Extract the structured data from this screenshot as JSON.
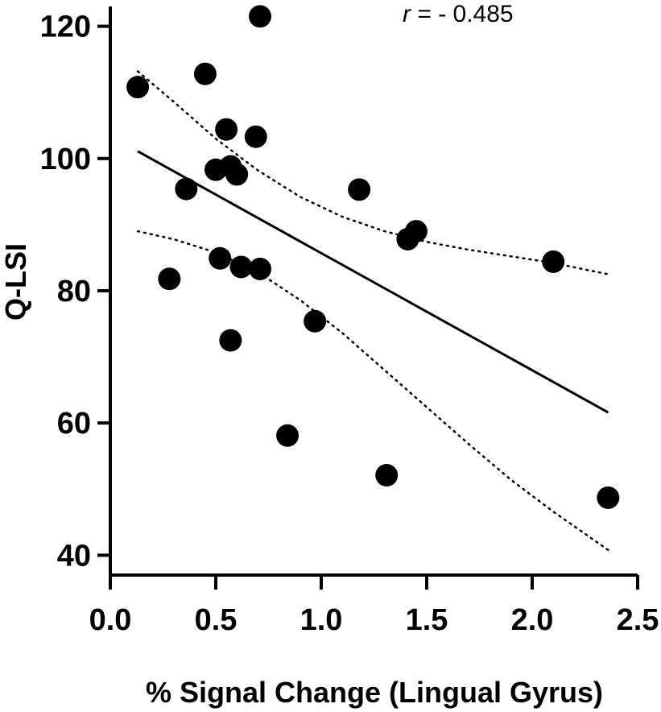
{
  "chart_data": {
    "type": "scatter",
    "title": "",
    "xlabel": "% Signal Change (Lingual Gyrus)",
    "ylabel": "Q-LSI",
    "xlim": [
      0,
      2.5
    ],
    "ylim": [
      37,
      123
    ],
    "x_ticks": [
      "0.0",
      "0.5",
      "1.0",
      "1.5",
      "2.0",
      "2.5"
    ],
    "y_ticks": [
      "40",
      "60",
      "80",
      "100",
      "120"
    ],
    "annotation": {
      "r_symbol": "r",
      "r_value": "= - 0.485"
    },
    "points": [
      {
        "x": 0.13,
        "y": 110.8
      },
      {
        "x": 0.45,
        "y": 112.8
      },
      {
        "x": 0.71,
        "y": 121.5
      },
      {
        "x": 0.55,
        "y": 104.4
      },
      {
        "x": 0.69,
        "y": 103.3
      },
      {
        "x": 0.5,
        "y": 98.3
      },
      {
        "x": 0.57,
        "y": 98.8
      },
      {
        "x": 0.6,
        "y": 97.6
      },
      {
        "x": 0.36,
        "y": 95.4
      },
      {
        "x": 1.18,
        "y": 95.3
      },
      {
        "x": 1.45,
        "y": 89.0
      },
      {
        "x": 1.41,
        "y": 87.8
      },
      {
        "x": 2.1,
        "y": 84.4
      },
      {
        "x": 0.52,
        "y": 84.9
      },
      {
        "x": 0.62,
        "y": 83.6
      },
      {
        "x": 0.71,
        "y": 83.3
      },
      {
        "x": 0.28,
        "y": 81.8
      },
      {
        "x": 0.97,
        "y": 75.4
      },
      {
        "x": 0.57,
        "y": 72.5
      },
      {
        "x": 0.84,
        "y": 58.1
      },
      {
        "x": 1.31,
        "y": 52.1
      },
      {
        "x": 2.36,
        "y": 48.7
      }
    ],
    "regression": [
      {
        "x": 0.13,
        "y": 101.1
      },
      {
        "x": 2.36,
        "y": 61.6
      }
    ],
    "ci_upper": [
      {
        "x": 0.13,
        "y": 113.2
      },
      {
        "x": 0.3,
        "y": 108.6
      },
      {
        "x": 0.5,
        "y": 103.0
      },
      {
        "x": 0.7,
        "y": 98.2
      },
      {
        "x": 0.9,
        "y": 94.2
      },
      {
        "x": 1.1,
        "y": 91.2
      },
      {
        "x": 1.3,
        "y": 89.0
      },
      {
        "x": 1.5,
        "y": 87.4
      },
      {
        "x": 1.7,
        "y": 86.2
      },
      {
        "x": 1.9,
        "y": 85.2
      },
      {
        "x": 2.1,
        "y": 84.2
      },
      {
        "x": 2.36,
        "y": 82.5
      }
    ],
    "ci_lower": [
      {
        "x": 0.13,
        "y": 89.0
      },
      {
        "x": 0.3,
        "y": 87.8
      },
      {
        "x": 0.5,
        "y": 85.8
      },
      {
        "x": 0.7,
        "y": 82.8
      },
      {
        "x": 0.9,
        "y": 78.6
      },
      {
        "x": 1.1,
        "y": 73.6
      },
      {
        "x": 1.3,
        "y": 68.0
      },
      {
        "x": 1.5,
        "y": 62.4
      },
      {
        "x": 1.7,
        "y": 56.8
      },
      {
        "x": 1.9,
        "y": 51.4
      },
      {
        "x": 2.1,
        "y": 46.6
      },
      {
        "x": 2.36,
        "y": 40.8
      }
    ]
  }
}
